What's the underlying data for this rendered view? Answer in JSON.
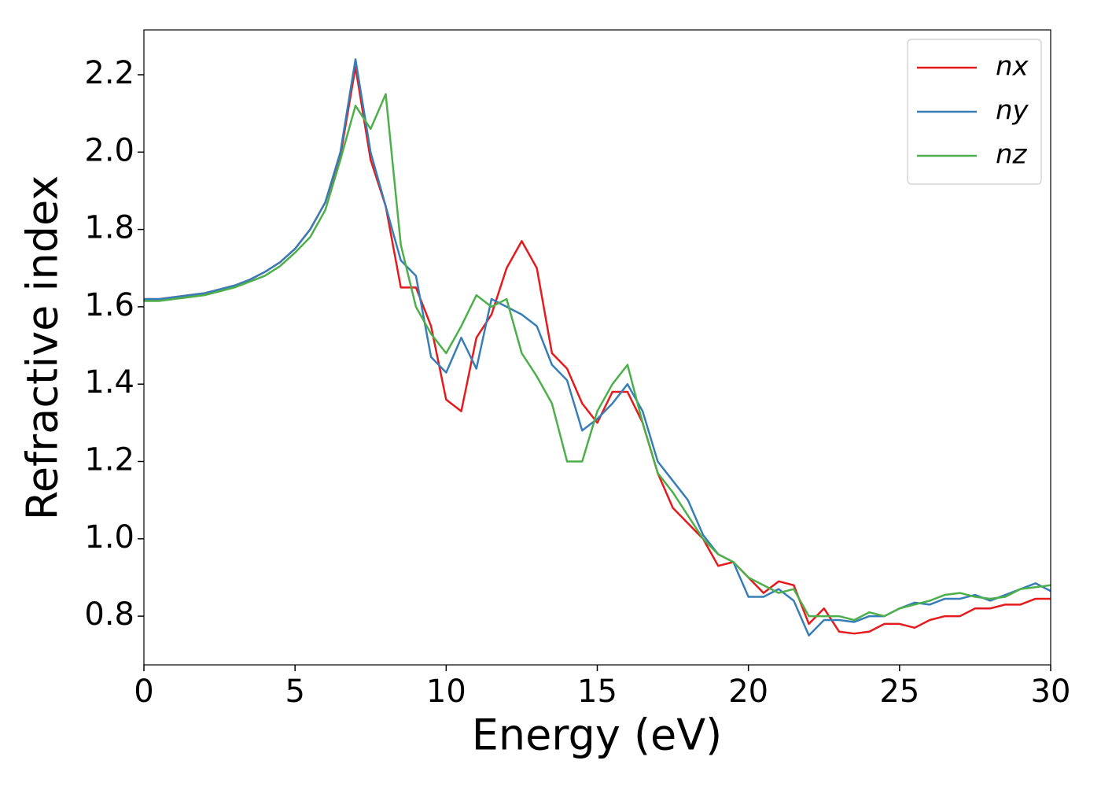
{
  "chart_data": {
    "type": "line",
    "xlabel": "Energy (eV)",
    "ylabel": "Refractive index",
    "x": [
      0,
      0.5,
      1,
      1.5,
      2,
      2.5,
      3,
      3.5,
      4,
      4.5,
      5,
      5.5,
      6,
      6.5,
      7,
      7.5,
      8,
      8.5,
      9,
      9.5,
      10,
      10.5,
      11,
      11.5,
      12,
      12.5,
      13,
      13.5,
      14,
      14.5,
      15,
      15.5,
      16,
      16.5,
      17,
      17.5,
      18,
      18.5,
      19,
      19.5,
      20,
      20.5,
      21,
      21.5,
      22,
      22.5,
      23,
      23.5,
      24,
      24.5,
      25,
      25.5,
      26,
      26.5,
      27,
      27.5,
      28,
      28.5,
      29,
      29.5,
      30
    ],
    "series": [
      {
        "name": "nx",
        "color": "#e41a1c",
        "values": [
          1.62,
          1.62,
          1.625,
          1.63,
          1.635,
          1.645,
          1.655,
          1.67,
          1.69,
          1.715,
          1.75,
          1.8,
          1.87,
          1.99,
          2.22,
          1.98,
          1.86,
          1.65,
          1.65,
          1.55,
          1.36,
          1.33,
          1.52,
          1.58,
          1.7,
          1.77,
          1.7,
          1.48,
          1.44,
          1.35,
          1.3,
          1.38,
          1.38,
          1.3,
          1.17,
          1.08,
          1.04,
          1.0,
          0.93,
          0.94,
          0.9,
          0.86,
          0.89,
          0.88,
          0.78,
          0.82,
          0.76,
          0.755,
          0.76,
          0.78,
          0.78,
          0.77,
          0.79,
          0.8,
          0.8,
          0.82,
          0.82,
          0.83,
          0.83,
          0.845,
          0.845
        ]
      },
      {
        "name": "ny",
        "color": "#377eb8",
        "values": [
          1.62,
          1.62,
          1.625,
          1.63,
          1.635,
          1.645,
          1.655,
          1.67,
          1.69,
          1.715,
          1.75,
          1.8,
          1.87,
          2.0,
          2.24,
          2.0,
          1.86,
          1.72,
          1.68,
          1.47,
          1.43,
          1.52,
          1.44,
          1.62,
          1.6,
          1.58,
          1.55,
          1.45,
          1.41,
          1.28,
          1.31,
          1.35,
          1.4,
          1.33,
          1.2,
          1.15,
          1.1,
          1.01,
          0.96,
          0.94,
          0.85,
          0.85,
          0.87,
          0.84,
          0.75,
          0.79,
          0.79,
          0.785,
          0.8,
          0.8,
          0.82,
          0.835,
          0.83,
          0.845,
          0.845,
          0.855,
          0.84,
          0.855,
          0.87,
          0.885,
          0.865
        ]
      },
      {
        "name": "nz",
        "color": "#4daf4a",
        "values": [
          1.615,
          1.615,
          1.62,
          1.625,
          1.63,
          1.64,
          1.65,
          1.665,
          1.68,
          1.705,
          1.74,
          1.78,
          1.85,
          1.98,
          2.12,
          2.06,
          2.15,
          1.76,
          1.6,
          1.53,
          1.48,
          1.55,
          1.63,
          1.6,
          1.62,
          1.48,
          1.42,
          1.35,
          1.2,
          1.2,
          1.33,
          1.4,
          1.45,
          1.3,
          1.17,
          1.12,
          1.06,
          1.0,
          0.96,
          0.94,
          0.9,
          0.88,
          0.86,
          0.87,
          0.8,
          0.8,
          0.8,
          0.79,
          0.81,
          0.8,
          0.82,
          0.83,
          0.84,
          0.855,
          0.86,
          0.85,
          0.845,
          0.85,
          0.87,
          0.875,
          0.88
        ]
      }
    ],
    "xlim": [
      0,
      30
    ],
    "xticks": [
      0,
      5,
      10,
      15,
      20,
      25,
      30
    ],
    "ylim": [
      0.674,
      2.316
    ],
    "yticks": [
      0.8,
      {
        "value": 1.0,
        "label": "1.0"
      },
      1.2,
      1.4,
      1.6,
      1.8,
      {
        "value": 2.0,
        "label": "2.0"
      },
      2.2
    ],
    "legend": "upper right"
  }
}
